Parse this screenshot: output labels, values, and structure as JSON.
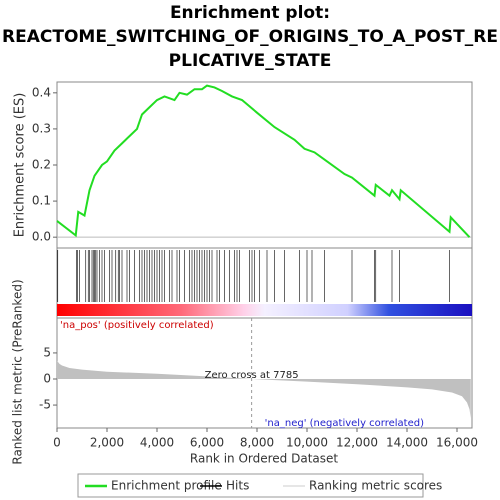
{
  "chart_data": {
    "type": "gsea",
    "title": [
      "Enrichment plot:",
      "REACTOME_SWITCHING_OF_ORIGINS_TO_A_POST_RE",
      "PLICATIVE_STATE"
    ],
    "ylabel": "Enrichment score (ES)",
    "y2label": "Ranked list metric (PreRanked)",
    "xlabel": "Rank in Ordered Dataset",
    "xlim": [
      0,
      16600
    ],
    "xticks": [
      0,
      {
        "value": 2000,
        "label": "2,000"
      },
      {
        "value": 4000,
        "label": "4,000"
      },
      {
        "value": 6000,
        "label": "6,000"
      },
      {
        "value": 8000,
        "label": "8,000"
      },
      {
        "value": 10000,
        "label": "10,000"
      },
      {
        "value": 12000,
        "label": "12,000"
      },
      {
        "value": 14000,
        "label": "14,000"
      },
      {
        "value": 16000,
        "label": "16,000"
      }
    ],
    "ylim": [
      -0.03,
      0.43
    ],
    "yticks": [
      {
        "value": 0,
        "label": "0.0"
      },
      0.1,
      0.2,
      0.3,
      0.4
    ],
    "y2lim": [
      -9.4,
      11.7
    ],
    "y2ticks": [
      5,
      0,
      -5
    ],
    "series": [
      {
        "name": "Enrichment profile",
        "color": "#22dd22",
        "x": [
          0,
          750,
          850,
          1100,
          1300,
          1500,
          1800,
          2000,
          2300,
          2600,
          2900,
          3200,
          3400,
          3700,
          4000,
          4300,
          4700,
          4900,
          5200,
          5500,
          5800,
          6000,
          6300,
          6600,
          7000,
          7400,
          8000,
          8700,
          9500,
          9900,
          10300,
          10700,
          11500,
          11800,
          12700,
          12750,
          13300,
          13400,
          13700,
          13750,
          15700,
          15750,
          16500
        ],
        "values": [
          0.045,
          0.005,
          0.07,
          0.06,
          0.13,
          0.17,
          0.2,
          0.21,
          0.24,
          0.26,
          0.28,
          0.3,
          0.34,
          0.36,
          0.38,
          0.39,
          0.38,
          0.4,
          0.395,
          0.41,
          0.41,
          0.42,
          0.415,
          0.405,
          0.39,
          0.38,
          0.345,
          0.305,
          0.27,
          0.245,
          0.235,
          0.215,
          0.175,
          0.165,
          0.115,
          0.145,
          0.115,
          0.13,
          0.105,
          0.13,
          0.015,
          0.055,
          0.0
        ]
      },
      {
        "name": "Hits",
        "color": "#000000",
        "x": [
          30,
          780,
          820,
          900,
          1150,
          1250,
          1300,
          1400,
          1450,
          1500,
          1550,
          1600,
          1700,
          1800,
          1900,
          2100,
          2200,
          2350,
          2450,
          2500,
          2600,
          2800,
          2900,
          3100,
          3300,
          3400,
          3500,
          3600,
          3700,
          3800,
          3900,
          4000,
          4100,
          4200,
          4300,
          4500,
          4600,
          4800,
          4900,
          5100,
          5300,
          5400,
          5500,
          5600,
          5700,
          5800,
          5900,
          6000,
          6100,
          6200,
          6400,
          6500,
          6700,
          6900,
          7100,
          7200,
          7300,
          7700,
          7800,
          7900,
          8100,
          8400,
          8700,
          9100,
          9700,
          10000,
          10200,
          10700,
          11800,
          12700,
          12750,
          13400,
          13700,
          15700
        ]
      },
      {
        "name": "Ranking metric scores",
        "color": "#c0c0c0",
        "axis": "y2",
        "x": [
          0,
          100,
          200,
          500,
          1000,
          2000,
          4000,
          6000,
          7785,
          10000,
          12000,
          14000,
          15000,
          15800,
          16200,
          16400,
          16500,
          16550
        ],
        "values": [
          3.5,
          2.9,
          2.6,
          2.1,
          1.8,
          1.4,
          1.0,
          0.5,
          0,
          -0.5,
          -1.0,
          -1.6,
          -2.0,
          -2.6,
          -3.3,
          -4.5,
          -5.8,
          -7.5
        ]
      }
    ],
    "zero_cross": 7785,
    "zero_cross_label": "Zero cross at 7785",
    "pos_label": "'na_pos' (positively correlated)",
    "neg_label": "'na_neg' (negatively correlated)"
  }
}
